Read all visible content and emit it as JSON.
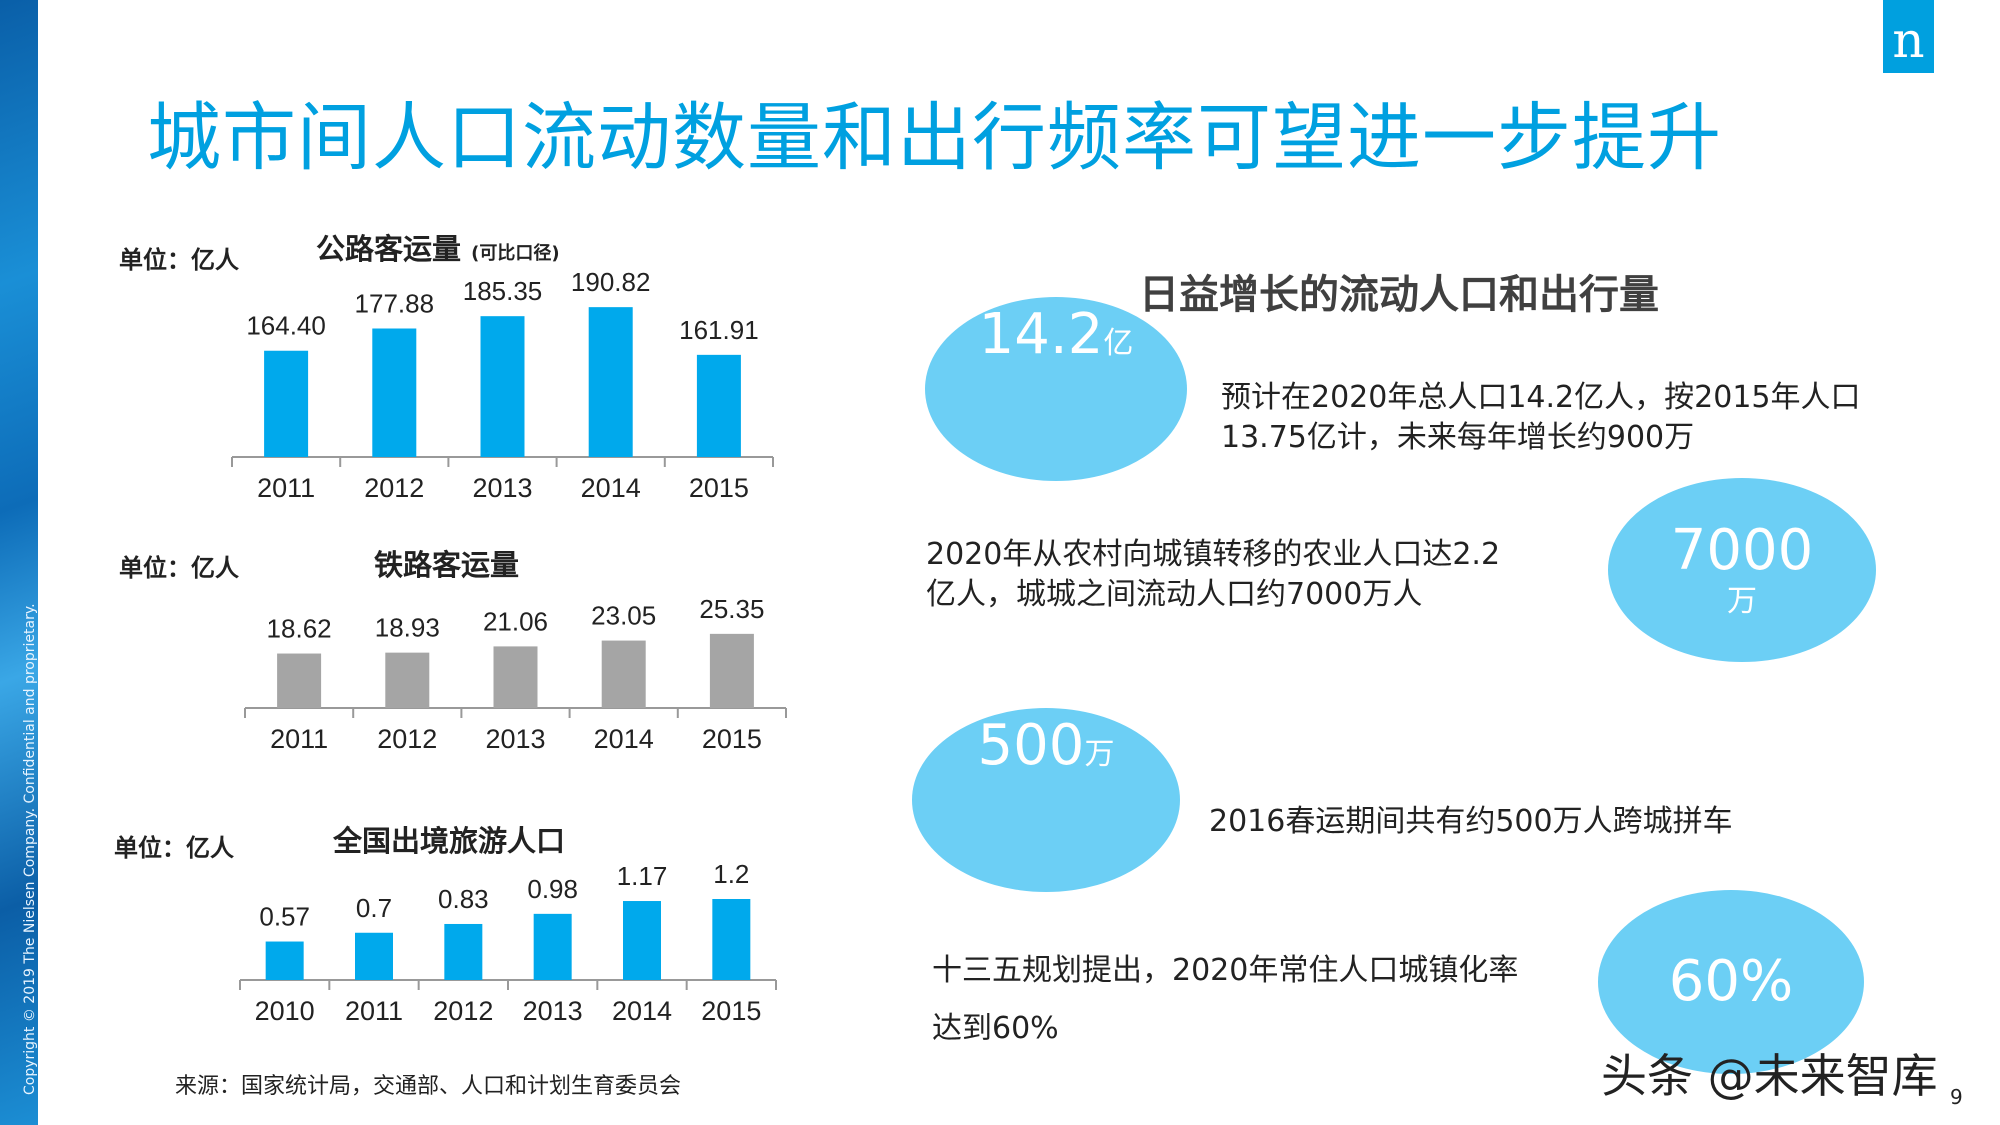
{
  "slide": {
    "title": "城市间人口流动数量和出行频率可望进一步提升",
    "copyright": "Copyright © 2019 The Nielsen Company. Confidential and proprietary.",
    "logo_letter": "n",
    "page_number": "9",
    "source": "来源：国家统计局，交通部、人口和计划生育委员会",
    "watermark": "头条 @未来智库"
  },
  "chart_data": [
    {
      "type": "bar",
      "title": "公路客运量",
      "subtitle": "(可比口径)",
      "unit": "单位：亿人",
      "categories": [
        "2011",
        "2012",
        "2013",
        "2014",
        "2015"
      ],
      "values": [
        164.4,
        177.88,
        185.35,
        190.82,
        161.91
      ],
      "labels": [
        "164.40",
        "177.88",
        "185.35",
        "190.82",
        "161.91"
      ],
      "ylim": [
        100,
        200
      ],
      "color": "#00a9ec"
    },
    {
      "type": "bar",
      "title": "铁路客运量",
      "unit": "单位：亿人",
      "categories": [
        "2011",
        "2012",
        "2013",
        "2014",
        "2015"
      ],
      "values": [
        18.62,
        18.93,
        21.06,
        23.05,
        25.35
      ],
      "labels": [
        "18.62",
        "18.93",
        "21.06",
        "23.05",
        "25.35"
      ],
      "ylim": [
        0,
        40
      ],
      "color": "#a5a5a5"
    },
    {
      "type": "bar",
      "title": "全国出境旅游人口",
      "unit": "单位：亿人",
      "categories": [
        "2010",
        "2011",
        "2012",
        "2013",
        "2014",
        "2015"
      ],
      "values": [
        0.57,
        0.7,
        0.83,
        0.98,
        1.17,
        1.2
      ],
      "labels": [
        "0.57",
        "0.7",
        "0.83",
        "0.98",
        "1.17",
        "1.2"
      ],
      "ylim": [
        0,
        2
      ],
      "color": "#00a9ec"
    }
  ],
  "right": {
    "heading": "日益增长的流动人口和出行量",
    "bubbles": [
      {
        "value": "14.2",
        "unit": "亿"
      },
      {
        "value": "7000",
        "unit": "万"
      },
      {
        "value": "500",
        "unit": "万"
      },
      {
        "value": "60%",
        "unit": ""
      }
    ],
    "texts": [
      [
        "预计在2020年总人口14.2亿人，按2015年人口",
        "13.75亿计，未来每年增长约900万"
      ],
      [
        "2020年从农村向城镇转移的农业人口达2.2",
        "亿人，城城之间流动人口约7000万人"
      ],
      [
        "2016春运期间共有约500万人跨城拼车"
      ],
      [
        "十三五规划提出，2020年常住人口城镇化率",
        "达到60%"
      ]
    ],
    "bubble_color": "#6ccff5"
  }
}
